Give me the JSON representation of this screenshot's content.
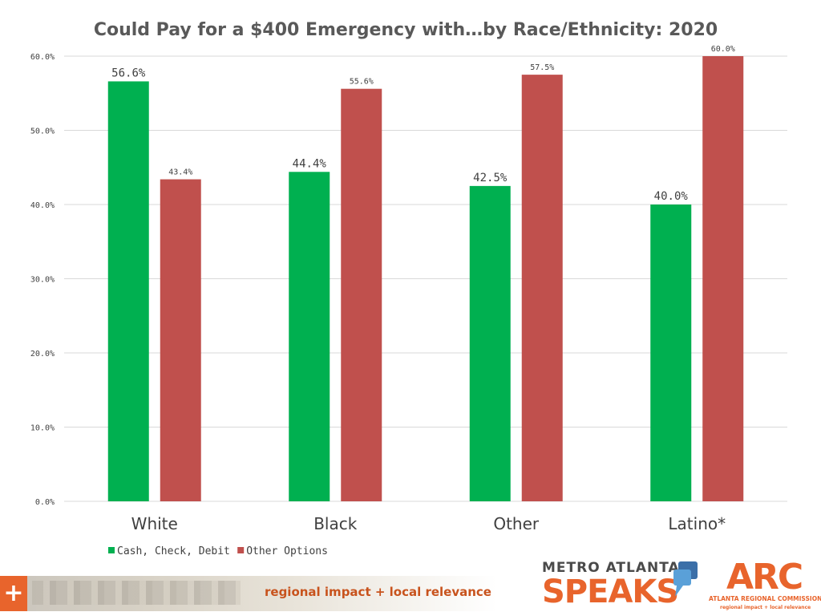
{
  "chart_data": {
    "type": "bar",
    "title": "Could Pay for a $400 Emergency with…by Race/Ethnicity: 2020",
    "categories": [
      "White",
      "Black",
      "Other",
      "Latino*"
    ],
    "series": [
      {
        "name": "Cash, Check, Debit",
        "color": "#00b050",
        "values": [
          56.6,
          44.4,
          42.5,
          40.0
        ],
        "labels": [
          "56.6%",
          "44.4%",
          "42.5%",
          "40.0%"
        ]
      },
      {
        "name": "Other Options",
        "color": "#c0504d",
        "values": [
          43.4,
          55.6,
          57.5,
          60.0
        ],
        "labels": [
          "43.4%",
          "55.6%",
          "57.5%",
          "60.0%"
        ]
      }
    ],
    "yticks": [
      "0.0%",
      "10.0%",
      "20.0%",
      "30.0%",
      "40.0%",
      "50.0%",
      "60.0%"
    ],
    "ylim": [
      0,
      60
    ],
    "grid": true,
    "legend": "bottom-left",
    "xlabel": "",
    "ylabel": ""
  },
  "footer": {
    "plus": "+",
    "tagline": "regional impact + local relevance",
    "mas_top": "METRO ATLANTA",
    "mas_bottom": "SPEAKS",
    "arc_letters": "ARC",
    "arc_name": "ATLANTA REGIONAL COMMISSION",
    "arc_tag": "regional impact + local relevance"
  }
}
